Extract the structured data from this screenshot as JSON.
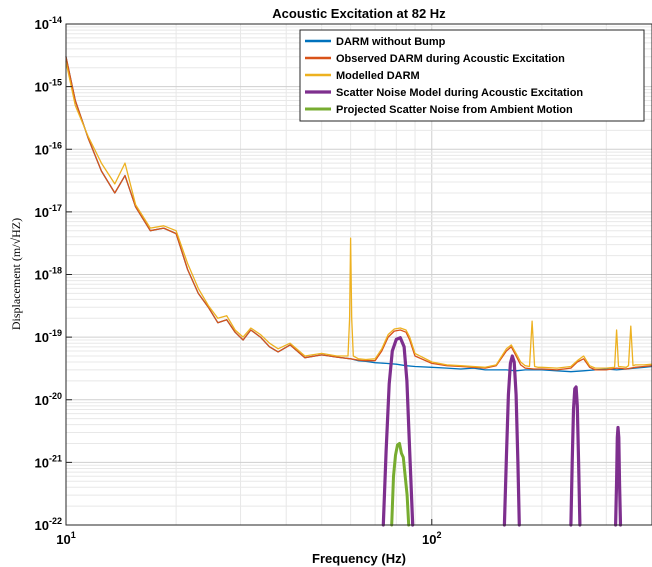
{
  "chart_data": {
    "type": "line",
    "title": "Acoustic Excitation at 82 Hz",
    "xlabel": "Frequency (Hz)",
    "ylabel": "Displacement (m/√HZ)",
    "xscale": "log",
    "yscale": "log",
    "xlim": [
      10,
      400
    ],
    "ylim": [
      1e-22,
      1e-14
    ],
    "grid": true,
    "legend_position": "top-right",
    "x_ticks": [
      {
        "base": "10",
        "exp": "1",
        "value": 10
      },
      {
        "base": "10",
        "exp": "2",
        "value": 100
      }
    ],
    "y_ticks": [
      {
        "base": "10",
        "exp": "-22",
        "value": 1e-22
      },
      {
        "base": "10",
        "exp": "-21",
        "value": 1e-21
      },
      {
        "base": "10",
        "exp": "-20",
        "value": 1e-20
      },
      {
        "base": "10",
        "exp": "-19",
        "value": 1e-19
      },
      {
        "base": "10",
        "exp": "-18",
        "value": 1e-18
      },
      {
        "base": "10",
        "exp": "-17",
        "value": 1e-17
      },
      {
        "base": "10",
        "exp": "-16",
        "value": 1e-16
      },
      {
        "base": "10",
        "exp": "-15",
        "value": 1e-15
      },
      {
        "base": "10",
        "exp": "-14",
        "value": 1e-14
      }
    ],
    "series": [
      {
        "name": "DARM without Bump",
        "color": "#0072BD",
        "width": 1.3,
        "x": [
          10,
          10.6,
          11.5,
          12.5,
          13.6,
          14.5,
          15.5,
          17,
          18.5,
          20,
          21.5,
          23,
          24.5,
          26,
          27.5,
          29,
          30.5,
          32,
          34,
          36,
          38,
          41,
          45,
          50,
          55,
          60,
          63,
          66,
          70,
          75,
          80,
          85,
          90,
          100,
          110,
          120,
          130,
          140,
          150,
          160,
          170,
          180,
          190,
          200,
          220,
          240,
          260,
          280,
          300,
          320,
          340,
          360,
          380,
          400
        ],
        "y": [
          3e-15,
          6e-16,
          1.5e-16,
          4.5e-17,
          2e-17,
          3.8e-17,
          1.2e-17,
          5e-18,
          5.5e-18,
          4.5e-18,
          1.2e-18,
          5e-19,
          3e-19,
          1.7e-19,
          1.9e-19,
          1.2e-19,
          9e-20,
          1.3e-19,
          1e-19,
          7e-20,
          5.8e-20,
          7.5e-20,
          4.7e-20,
          5.2e-20,
          4.8e-20,
          4.5e-20,
          4.2e-20,
          4.1e-20,
          3.9e-20,
          3.8e-20,
          3.7e-20,
          3.5e-20,
          3.4e-20,
          3.3e-20,
          3.2e-20,
          3.1e-20,
          3.2e-20,
          3e-20,
          3e-20,
          3e-20,
          2.9e-20,
          3e-20,
          3e-20,
          3e-20,
          2.9e-20,
          2.8e-20,
          2.9e-20,
          3e-20,
          3.1e-20,
          3e-20,
          3.1e-20,
          3.2e-20,
          3.3e-20,
          3.4e-20
        ]
      },
      {
        "name": "Observed DARM during Acoustic Excitation",
        "color": "#D95319",
        "width": 1.3,
        "x": [
          10,
          10.6,
          11.5,
          12.5,
          13.6,
          14.5,
          15.5,
          17,
          18.5,
          20,
          21.5,
          23,
          24.5,
          26,
          27.5,
          29,
          30.5,
          32,
          34,
          36,
          38,
          41,
          45,
          50,
          55,
          60,
          63,
          66,
          70,
          73,
          76,
          79,
          82,
          85,
          87,
          90,
          100,
          110,
          120,
          130,
          140,
          150,
          160,
          165,
          170,
          175,
          180,
          190,
          200,
          220,
          240,
          250,
          260,
          270,
          280,
          300,
          320,
          340,
          360,
          380,
          400
        ],
        "y": [
          3e-15,
          6e-16,
          1.5e-16,
          4.5e-17,
          2e-17,
          3.8e-17,
          1.2e-17,
          5e-18,
          5.5e-18,
          4.5e-18,
          1.2e-18,
          5e-19,
          3e-19,
          1.7e-19,
          1.9e-19,
          1.2e-19,
          9e-20,
          1.3e-19,
          1e-19,
          7e-20,
          5.8e-20,
          7.5e-20,
          4.7e-20,
          5.2e-20,
          4.8e-20,
          4.5e-20,
          4.3e-20,
          4.2e-20,
          4.2e-20,
          6e-20,
          1e-19,
          1.25e-19,
          1.3e-19,
          1.2e-19,
          9e-20,
          5e-20,
          3.8e-20,
          3.5e-20,
          3.4e-20,
          3.3e-20,
          3.2e-20,
          3.5e-20,
          6e-20,
          7e-20,
          5e-20,
          3.6e-20,
          3.2e-20,
          3.1e-20,
          3.1e-20,
          3e-20,
          3.2e-20,
          4e-20,
          4.5e-20,
          3.3e-20,
          3e-20,
          3e-20,
          3.2e-20,
          3.1e-20,
          3.3e-20,
          3.4e-20,
          3.5e-20
        ]
      },
      {
        "name": "Modelled DARM",
        "color": "#EDB120",
        "width": 1.3,
        "x": [
          10,
          10.6,
          11.5,
          12.5,
          13.6,
          14.5,
          15.5,
          17,
          18.5,
          20,
          21.5,
          23,
          24.5,
          26,
          27.5,
          29,
          30.5,
          32,
          34,
          36,
          38,
          41,
          45,
          50,
          55,
          59,
          59.6,
          60,
          60.4,
          61,
          63,
          66,
          70,
          73,
          76,
          79,
          82,
          85,
          87,
          90,
          100,
          110,
          120,
          130,
          140,
          150,
          160,
          165,
          170,
          175,
          180,
          185,
          188,
          191,
          195,
          200,
          220,
          240,
          250,
          260,
          270,
          280,
          300,
          316,
          320,
          324,
          340,
          345,
          350,
          355,
          360,
          380,
          400
        ],
        "y": [
          2.5e-15,
          5e-16,
          1.6e-16,
          6e-17,
          2.8e-17,
          6e-17,
          1.3e-17,
          5.5e-18,
          6e-18,
          5e-18,
          1.5e-18,
          6e-19,
          3.2e-19,
          2e-19,
          2.2e-19,
          1.3e-19,
          1e-19,
          1.4e-19,
          1.1e-19,
          8e-20,
          6.5e-20,
          8e-20,
          5e-20,
          5.5e-20,
          5e-20,
          5e-20,
          2e-19,
          3.8e-18,
          2e-19,
          5e-20,
          4.5e-20,
          4.4e-20,
          4.5e-20,
          6.5e-20,
          1.1e-19,
          1.35e-19,
          1.4e-19,
          1.3e-19,
          1e-19,
          5.5e-20,
          4e-20,
          3.6e-20,
          3.5e-20,
          3.4e-20,
          3.3e-20,
          3.6e-20,
          6.5e-20,
          7.5e-20,
          5.5e-20,
          4e-20,
          3.5e-20,
          3.4e-20,
          1.8e-19,
          3.4e-20,
          3.3e-20,
          3.3e-20,
          3.2e-20,
          3.4e-20,
          4.2e-20,
          5e-20,
          3.5e-20,
          3.2e-20,
          3.2e-20,
          3.3e-20,
          1.3e-19,
          3.4e-20,
          3.3e-20,
          3.5e-20,
          1.5e-19,
          3.5e-20,
          3.6e-20,
          3.6e-20,
          3.7e-20
        ]
      },
      {
        "name": "Scatter Noise Model during Acoustic Excitation",
        "color": "#7E2F8E",
        "width": 3.2,
        "segments": [
          {
            "x": [
              73.7,
              75,
              76.5,
              78,
              80,
              82,
              84,
              85.5,
              87,
              88.7
            ],
            "y": [
              1e-22,
              1.5e-21,
              1.8e-20,
              6e-20,
              9.2e-20,
              9.8e-20,
              7e-20,
              2e-20,
              1.5e-21,
              1e-22
            ]
          },
          {
            "x": [
              158,
              160,
              162,
              164,
              166,
              168,
              170,
              172,
              173.5
            ],
            "y": [
              1e-22,
              1.2e-21,
              1.2e-20,
              3.8e-20,
              5e-20,
              4e-20,
              1.2e-20,
              1e-21,
              1e-22
            ]
          },
          {
            "x": [
              240,
              242,
              244,
              246,
              248,
              250,
              252,
              254
            ],
            "y": [
              1e-22,
              1e-21,
              7e-21,
              1.5e-20,
              1.6e-20,
              8e-21,
              1e-21,
              1e-22
            ]
          },
          {
            "x": [
              318,
              320,
              321.5,
              323,
              324.5,
              326,
              328
            ],
            "y": [
              1e-22,
              5e-22,
              2.5e-21,
              3.6e-21,
              2.5e-21,
              5e-22,
              1e-22
            ]
          }
        ]
      },
      {
        "name": "Projected  Scatter Noise from Ambient Motion",
        "color": "#77AC30",
        "width": 3.0,
        "x": [
          77.7,
          78.6,
          79.6,
          80.6,
          81.6,
          82.6,
          83.6,
          84.6,
          85.6,
          86.5
        ],
        "y": [
          1e-22,
          6e-22,
          1.3e-21,
          1.9e-21,
          2e-21,
          1.4e-21,
          1.2e-21,
          6e-22,
          3e-22,
          1e-22
        ]
      }
    ]
  }
}
